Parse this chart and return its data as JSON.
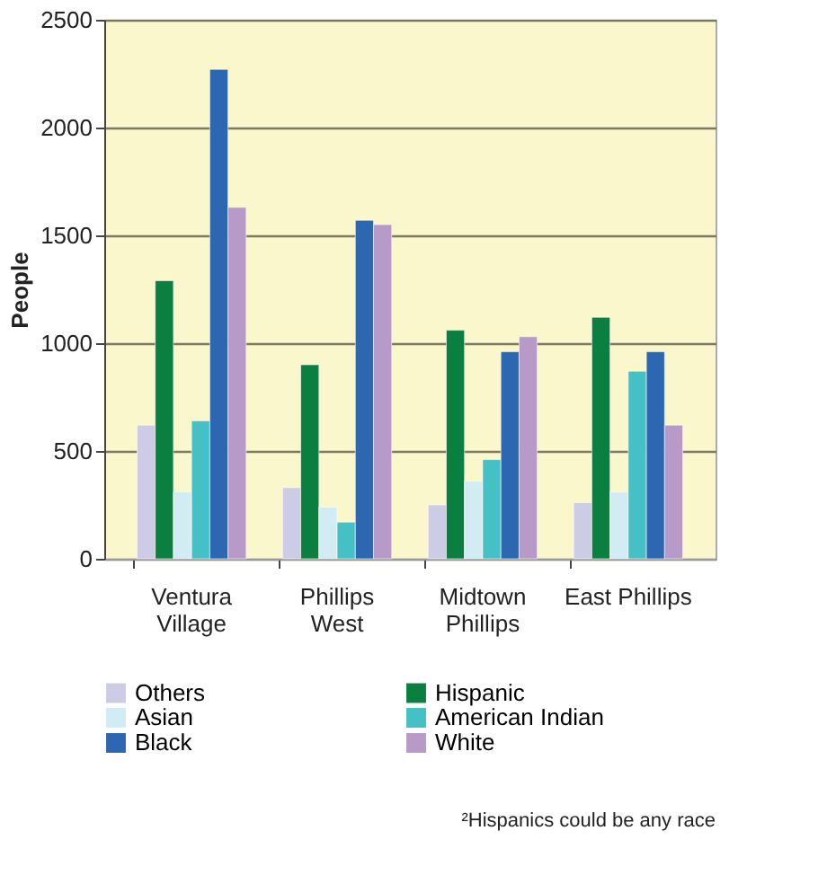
{
  "chart_data": {
    "type": "bar",
    "ylabel": "People",
    "categories": [
      "Ventura\nVillage",
      "Phillips\nWest",
      "Midtown\nPhillips",
      "East Phillips"
    ],
    "series": [
      {
        "name": "Others",
        "color": "#cccce6",
        "values": [
          620,
          330,
          250,
          260
        ]
      },
      {
        "name": "Hispanic",
        "color": "#0a7f3f",
        "values": [
          1290,
          900,
          1060,
          1120
        ]
      },
      {
        "name": "Asian",
        "color": "#d2ecf4",
        "values": [
          310,
          240,
          360,
          310
        ]
      },
      {
        "name": "American Indian",
        "color": "#45c0c4",
        "values": [
          640,
          170,
          460,
          870
        ]
      },
      {
        "name": "Black",
        "color": "#2e67b1",
        "values": [
          2270,
          1570,
          960,
          960
        ]
      },
      {
        "name": "White",
        "color": "#b89ac8",
        "values": [
          1630,
          1550,
          1030,
          620
        ]
      }
    ],
    "ylim": [
      0,
      2500
    ],
    "yticks": [
      0,
      500,
      1000,
      1500,
      2000,
      2500
    ],
    "grid": "y",
    "legend": "bottom",
    "annotations": [
      "²Hispanics could be any race"
    ]
  }
}
